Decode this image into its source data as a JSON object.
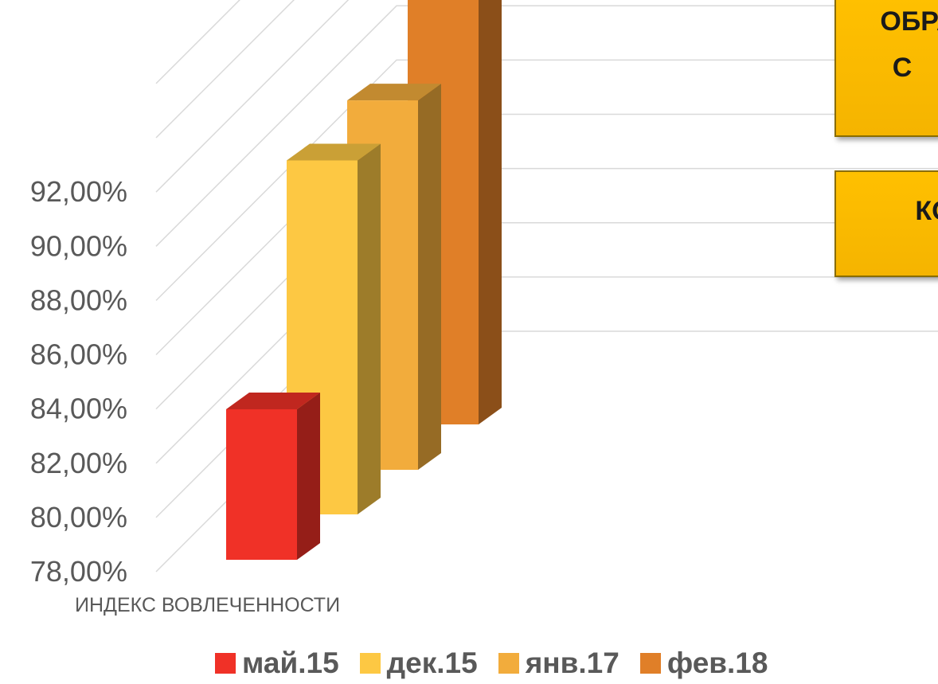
{
  "chart_data": {
    "type": "bar",
    "categories": [
      "ИНДЕКС ВОВЛЕЧЕННОСТИ"
    ],
    "series": [
      {
        "name": "май.15",
        "values": [
          0.8355
        ],
        "color": "#f03127"
      },
      {
        "name": "дек.15",
        "values": [
          0.9105
        ],
        "color": "#fdc843"
      },
      {
        "name": "янв.17",
        "values": [
          0.9162
        ],
        "color": "#f2ac3c"
      },
      {
        "name": "фев.18",
        "values": [
          0.9418
        ],
        "color": "#e07f28"
      }
    ],
    "y_ticks": [
      "78,00%",
      "80,00%",
      "82,00%",
      "84,00%",
      "86,00%",
      "88,00%",
      "90,00%",
      "92,00%"
    ],
    "ylim": [
      0.78,
      0.96
    ],
    "three_d": true,
    "grid": true,
    "legend": "bottom"
  },
  "callouts": [
    {
      "text": "ОБРА\nС"
    },
    {
      "text": "КО"
    }
  ]
}
